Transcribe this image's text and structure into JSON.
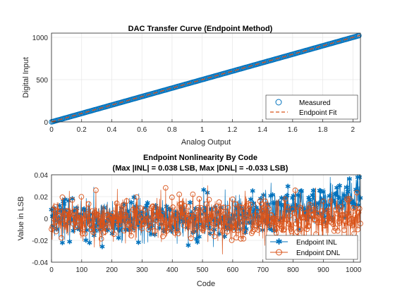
{
  "colors": {
    "blue": "#0072bd",
    "orange": "#d95319",
    "axis": "#262626",
    "grid": "#e6e6e6"
  },
  "chart_data": [
    {
      "type": "scatter",
      "title": "DAC Transfer Curve (Endpoint Method)",
      "xlabel": "Analog Output",
      "ylabel": "Digital Input",
      "xlim": [
        0,
        2.05
      ],
      "ylim": [
        0,
        1050
      ],
      "xticks": [
        "0",
        "0.2",
        "0.4",
        "0.6",
        "0.8",
        "1",
        "1.2",
        "1.4",
        "1.6",
        "1.8",
        "2"
      ],
      "yticks": [
        "0",
        "500",
        "1000"
      ],
      "grid": true,
      "legend_position": "bottom-right",
      "series": [
        {
          "name": "Measured",
          "marker": "circle",
          "color": "#0072bd",
          "x_start": 0,
          "x_end": 2.046,
          "y_start": 0,
          "y_end": 1023,
          "points": 1024
        },
        {
          "name": "Endpoint Fit",
          "line": "dashed",
          "color": "#d95319",
          "x": [
            0,
            2.046
          ],
          "y": [
            0,
            1023
          ]
        }
      ]
    },
    {
      "type": "line",
      "title": "Endpoint Nonlinearity By Code",
      "subtitle": "(Max |INL| = 0.038 LSB, Max |DNL| = -0.033 LSB)",
      "xlabel": "Code",
      "ylabel": "Value in LSB",
      "xlim": [
        0,
        1023
      ],
      "ylim": [
        -0.04,
        0.04
      ],
      "xticks": [
        "0",
        "100",
        "200",
        "300",
        "400",
        "500",
        "600",
        "700",
        "800",
        "900",
        "1000"
      ],
      "yticks": [
        "-0.04",
        "-0.02",
        "0",
        "0.02",
        "0.04"
      ],
      "grid": true,
      "legend_position": "bottom-right",
      "series": [
        {
          "name": "Endpoint INL",
          "marker": "asterisk",
          "color": "#0072bd",
          "codes": [
            0,
            1023
          ],
          "noise_sd": 0.009,
          "trend_start": 0.0,
          "trend_end": 0.02,
          "max_abs": 0.038
        },
        {
          "name": "Endpoint DNL",
          "marker": "circle",
          "color": "#d95319",
          "codes": [
            0,
            1023
          ],
          "noise_sd": 0.01,
          "min": -0.033
        }
      ]
    }
  ]
}
